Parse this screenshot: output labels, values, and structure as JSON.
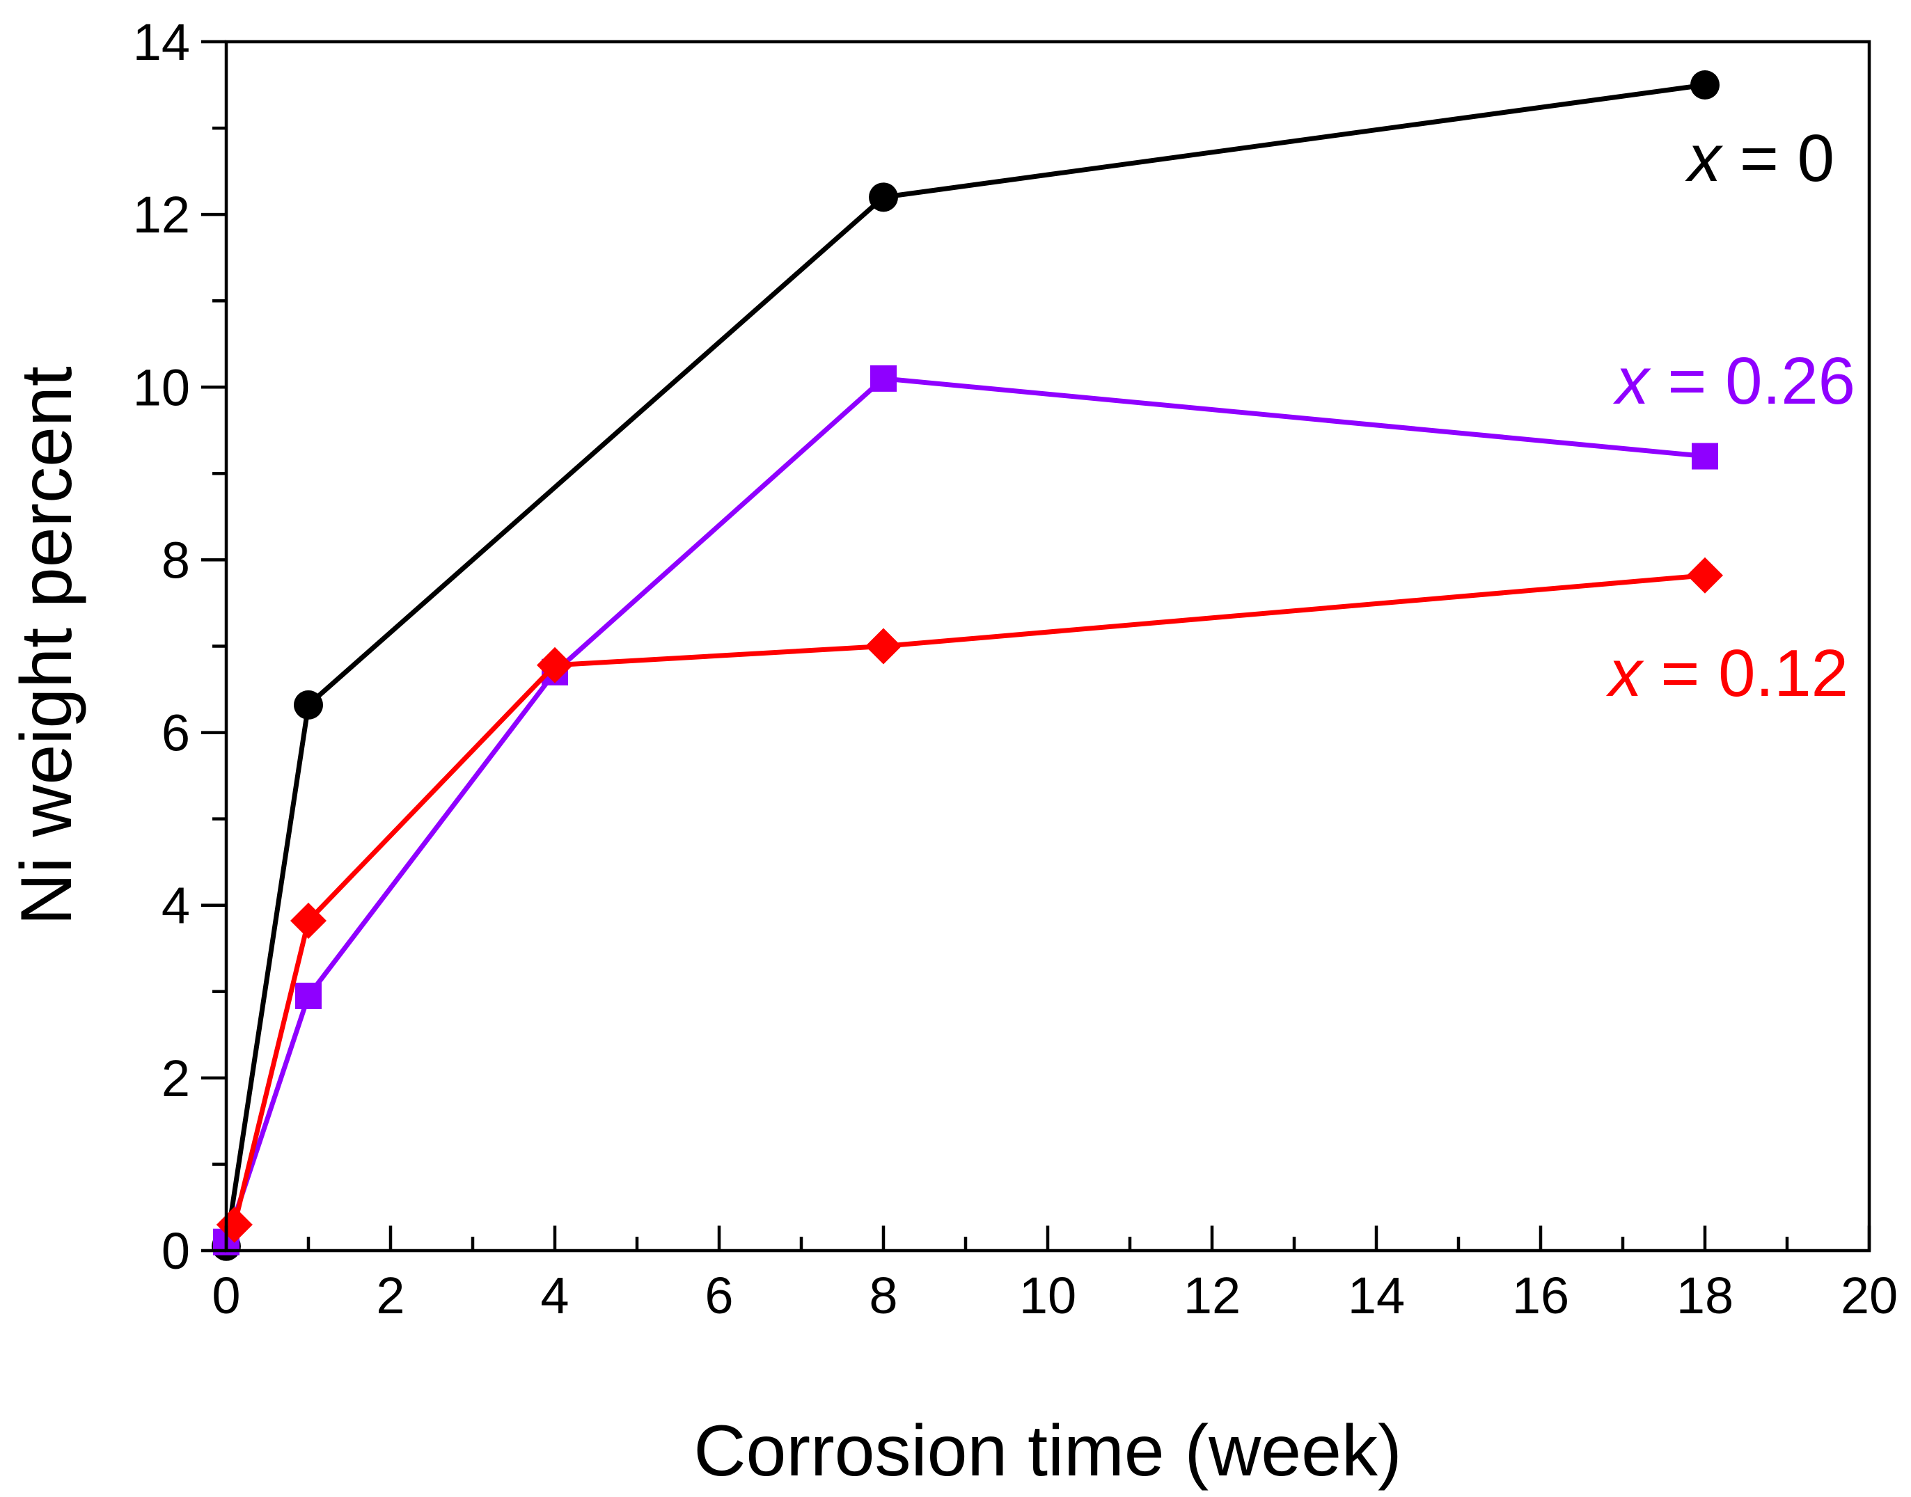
{
  "chart_data": {
    "type": "line",
    "title": "",
    "xlabel": "Corrosion time (week)",
    "ylabel": "Ni weight percent",
    "xlim": [
      0,
      20
    ],
    "ylim": [
      0,
      14
    ],
    "x_ticks": [
      0,
      2,
      4,
      6,
      8,
      10,
      12,
      14,
      16,
      18,
      20
    ],
    "x_tick_labels": [
      "0",
      "2",
      "4",
      "6",
      "8",
      "10",
      "12",
      "14",
      "16",
      "18",
      "20"
    ],
    "y_ticks": [
      0,
      2,
      4,
      6,
      8,
      10,
      12,
      14
    ],
    "y_tick_labels": [
      "0",
      "2",
      "4",
      "6",
      "8",
      "10",
      "12",
      "14"
    ],
    "grid": false,
    "series": [
      {
        "name": "x = 0",
        "label_var": "x",
        "label_rest": " = 0",
        "color": "#000000",
        "marker": "circle",
        "x": [
          0,
          1,
          8,
          18
        ],
        "y": [
          0.05,
          6.32,
          12.2,
          13.5
        ]
      },
      {
        "name": "x = 0.26",
        "label_var": "x",
        "label_rest": " = 0.26",
        "color": "#8f00ff",
        "marker": "square",
        "x": [
          0,
          1,
          4,
          8,
          18
        ],
        "y": [
          0.1,
          2.95,
          6.7,
          10.1,
          9.2
        ]
      },
      {
        "name": "x = 0.12",
        "label_var": "x",
        "label_rest": " = 0.12",
        "color": "#ff0000",
        "marker": "diamond",
        "x": [
          0.1,
          1,
          4,
          8,
          18
        ],
        "y": [
          0.3,
          3.82,
          6.78,
          7.0,
          7.82
        ]
      }
    ]
  }
}
